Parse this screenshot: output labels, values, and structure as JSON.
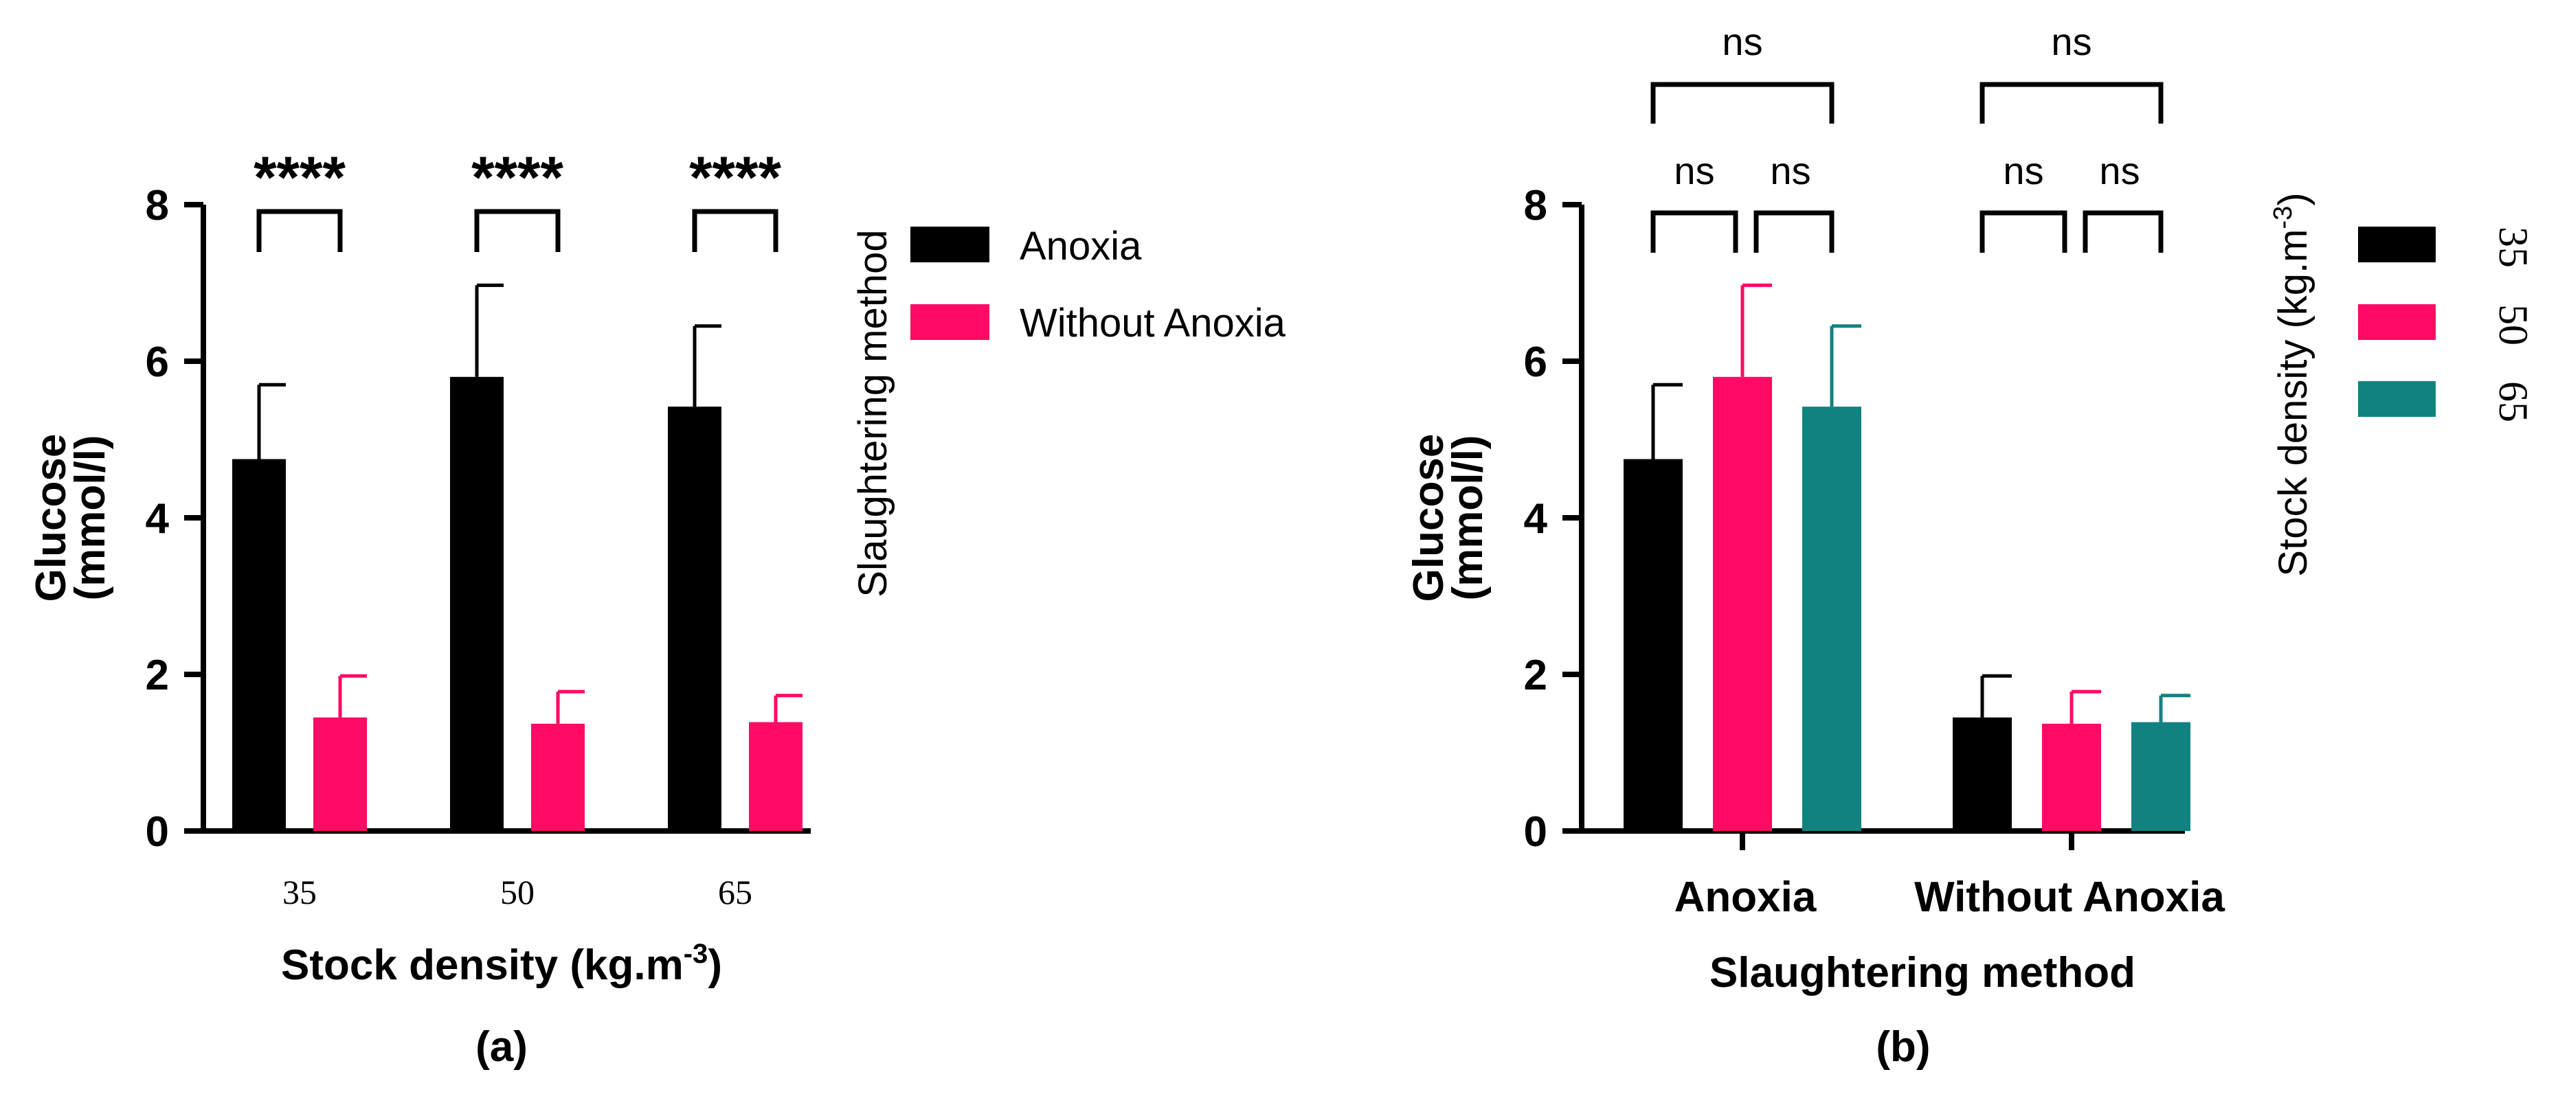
{
  "colors": {
    "anoxia": "#000000",
    "without_anoxia": "#ff0a64",
    "density_35": "#000000",
    "density_50": "#ff0a64",
    "density_65": "#128280"
  },
  "chart_data": [
    {
      "id": "a",
      "panel_label": "(a)",
      "type": "bar",
      "xlabel": "Stock density (kg.m",
      "xlabel_superscript": "-3",
      "xlabel_suffix": ")",
      "ylabel_line1": "Glucose",
      "ylabel_line2": "(mmol/l)",
      "ylim": [
        0,
        8
      ],
      "yticks": [
        "0",
        "2",
        "4",
        "6",
        "8"
      ],
      "categories": [
        "35",
        "50",
        "65"
      ],
      "series": [
        {
          "name": "Anoxia",
          "color_key": "anoxia",
          "values": [
            4.75,
            5.8,
            5.42
          ],
          "errors": [
            0.95,
            1.17,
            1.03
          ]
        },
        {
          "name": "Without Anoxia",
          "color_key": "without_anoxia",
          "values": [
            1.45,
            1.37,
            1.39
          ],
          "errors": [
            0.53,
            0.41,
            0.34
          ]
        }
      ],
      "legend_title": "Slaughtering method",
      "legend_entries": [
        "Anoxia",
        "Without Anoxia"
      ],
      "significance": [
        "****",
        "****",
        "****"
      ]
    },
    {
      "id": "b",
      "panel_label": "(b)",
      "type": "bar",
      "xlabel": "Slaughtering method",
      "ylabel_line1": "Glucose",
      "ylabel_line2": "(mmol/l)",
      "ylim": [
        0,
        8
      ],
      "yticks": [
        "0",
        "2",
        "4",
        "6",
        "8"
      ],
      "categories": [
        "Anoxia",
        "Without Anoxia"
      ],
      "series": [
        {
          "name": "35",
          "color_key": "density_35",
          "values": [
            4.75,
            1.45
          ],
          "errors": [
            0.95,
            0.53
          ]
        },
        {
          "name": "50",
          "color_key": "density_50",
          "values": [
            5.8,
            1.37
          ],
          "errors": [
            1.17,
            0.41
          ]
        },
        {
          "name": "65",
          "color_key": "density_65",
          "values": [
            5.42,
            1.39
          ],
          "errors": [
            1.03,
            0.34
          ]
        }
      ],
      "legend_title": "Stock density (kg.m",
      "legend_title_superscript": "-3",
      "legend_title_suffix": ")",
      "legend_entries": [
        "35",
        "50",
        "65"
      ],
      "significance_adjacent": [
        "ns",
        "ns",
        "ns",
        "ns"
      ],
      "significance_outer": [
        "ns",
        "ns"
      ]
    }
  ]
}
